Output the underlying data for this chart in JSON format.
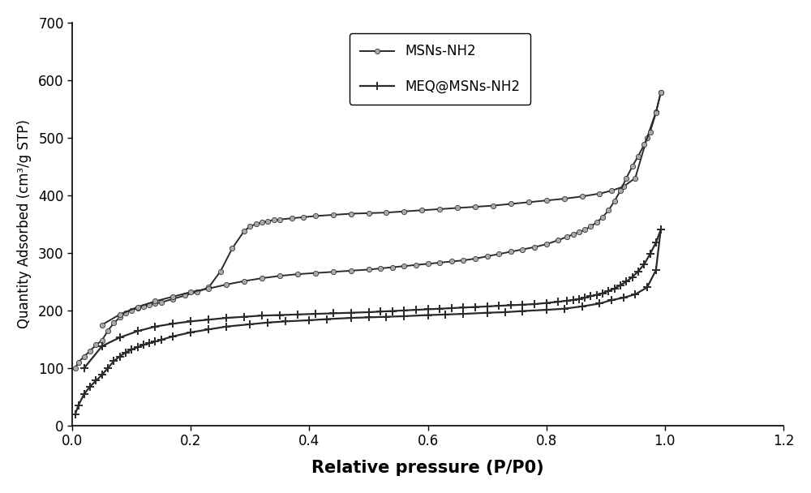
{
  "title": "",
  "xlabel": "Relative pressure (P/P0)",
  "ylabel": "Quantity Adsorbed (cm³/g STP)",
  "xlim": [
    0,
    1.2
  ],
  "ylim": [
    0,
    700
  ],
  "xticks": [
    0.0,
    0.2,
    0.4,
    0.6,
    0.8,
    1.0,
    1.2
  ],
  "yticks": [
    0,
    100,
    200,
    300,
    400,
    500,
    600,
    700
  ],
  "legend1": "MSNs-NH2",
  "legend2": "MEQ@MSNs-NH2",
  "line_color": "#2a2a2a",
  "background": "#ffffff",
  "msn_ads_x": [
    0.005,
    0.01,
    0.02,
    0.03,
    0.04,
    0.05,
    0.06,
    0.07,
    0.08,
    0.09,
    0.1,
    0.11,
    0.12,
    0.13,
    0.14,
    0.15,
    0.17,
    0.19,
    0.21,
    0.23,
    0.25,
    0.27,
    0.29,
    0.3,
    0.31,
    0.32,
    0.33,
    0.34,
    0.35,
    0.37,
    0.39,
    0.41,
    0.44,
    0.47,
    0.5,
    0.53,
    0.56,
    0.59,
    0.62,
    0.65,
    0.68,
    0.71,
    0.74,
    0.77,
    0.8,
    0.83,
    0.86,
    0.89,
    0.91,
    0.93,
    0.95,
    0.97,
    0.985,
    0.993
  ],
  "msn_ads_y": [
    100,
    110,
    120,
    130,
    140,
    148,
    165,
    178,
    188,
    196,
    200,
    204,
    207,
    210,
    212,
    214,
    220,
    226,
    232,
    240,
    268,
    308,
    338,
    346,
    350,
    353,
    355,
    357,
    358,
    360,
    362,
    364,
    366,
    368,
    369,
    370,
    372,
    374,
    376,
    378,
    380,
    382,
    385,
    388,
    391,
    394,
    398,
    403,
    408,
    415,
    430,
    500,
    545,
    578
  ],
  "msn_des_x": [
    0.993,
    0.985,
    0.975,
    0.965,
    0.955,
    0.945,
    0.935,
    0.925,
    0.915,
    0.905,
    0.895,
    0.885,
    0.875,
    0.865,
    0.855,
    0.845,
    0.835,
    0.82,
    0.8,
    0.78,
    0.76,
    0.74,
    0.72,
    0.7,
    0.68,
    0.66,
    0.64,
    0.62,
    0.6,
    0.58,
    0.56,
    0.54,
    0.52,
    0.5,
    0.47,
    0.44,
    0.41,
    0.38,
    0.35,
    0.32,
    0.29,
    0.26,
    0.23,
    0.2,
    0.17,
    0.14,
    0.11,
    0.08,
    0.05
  ],
  "msn_des_y": [
    578,
    543,
    510,
    488,
    468,
    450,
    430,
    408,
    390,
    374,
    362,
    353,
    346,
    340,
    336,
    332,
    328,
    322,
    315,
    310,
    306,
    302,
    298,
    294,
    290,
    287,
    285,
    283,
    281,
    279,
    277,
    275,
    273,
    271,
    269,
    267,
    265,
    263,
    260,
    256,
    251,
    245,
    238,
    232,
    224,
    216,
    206,
    193,
    175
  ],
  "meq_ads_x": [
    0.005,
    0.01,
    0.02,
    0.03,
    0.04,
    0.05,
    0.06,
    0.07,
    0.08,
    0.09,
    0.1,
    0.11,
    0.12,
    0.13,
    0.14,
    0.15,
    0.17,
    0.2,
    0.23,
    0.26,
    0.3,
    0.33,
    0.36,
    0.4,
    0.43,
    0.47,
    0.5,
    0.53,
    0.56,
    0.6,
    0.63,
    0.66,
    0.7,
    0.73,
    0.76,
    0.8,
    0.83,
    0.86,
    0.89,
    0.91,
    0.93,
    0.95,
    0.97,
    0.985,
    0.993
  ],
  "meq_ads_y": [
    20,
    35,
    55,
    68,
    78,
    88,
    100,
    112,
    120,
    127,
    132,
    136,
    140,
    143,
    146,
    149,
    155,
    162,
    167,
    172,
    176,
    179,
    181,
    183,
    185,
    187,
    188,
    189,
    190,
    192,
    193,
    194,
    196,
    197,
    199,
    201,
    203,
    207,
    212,
    218,
    222,
    228,
    240,
    270,
    340
  ],
  "meq_des_x": [
    0.993,
    0.985,
    0.975,
    0.965,
    0.955,
    0.945,
    0.935,
    0.925,
    0.915,
    0.905,
    0.895,
    0.885,
    0.875,
    0.865,
    0.855,
    0.845,
    0.835,
    0.82,
    0.8,
    0.78,
    0.76,
    0.74,
    0.72,
    0.7,
    0.68,
    0.66,
    0.64,
    0.62,
    0.6,
    0.58,
    0.56,
    0.54,
    0.52,
    0.5,
    0.47,
    0.44,
    0.41,
    0.38,
    0.35,
    0.32,
    0.29,
    0.26,
    0.23,
    0.2,
    0.17,
    0.14,
    0.11,
    0.08,
    0.05,
    0.02
  ],
  "meq_des_y": [
    340,
    318,
    298,
    280,
    268,
    258,
    250,
    244,
    238,
    234,
    230,
    227,
    225,
    222,
    220,
    218,
    217,
    215,
    213,
    211,
    210,
    209,
    208,
    207,
    206,
    205,
    204,
    203,
    202,
    201,
    200,
    199,
    198,
    197,
    196,
    195,
    194,
    193,
    192,
    191,
    189,
    187,
    184,
    181,
    177,
    172,
    164,
    153,
    138,
    100
  ]
}
